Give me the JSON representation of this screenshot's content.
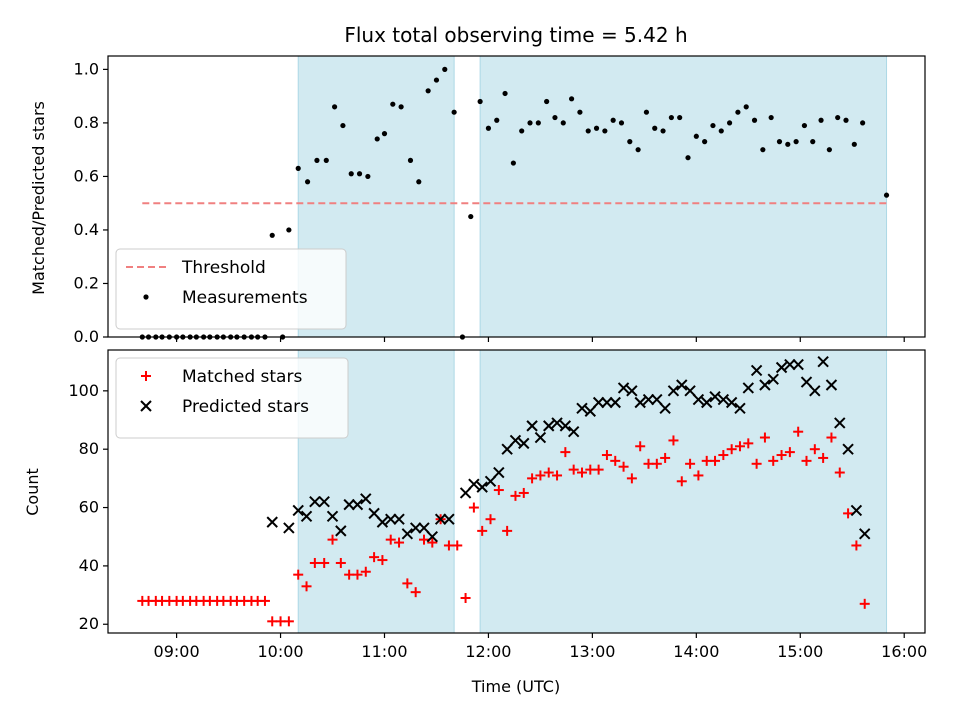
{
  "figure": {
    "title": "Flux total observing time = 5.42 h",
    "xlabel": "Time (UTC)",
    "x_tick_labels": [
      "09:00",
      "10:00",
      "11:00",
      "12:00",
      "13:00",
      "14:00",
      "15:00",
      "16:00"
    ],
    "x_tick_values": [
      9,
      10,
      11,
      12,
      13,
      14,
      15,
      16
    ],
    "xlim": [
      8.34,
      16.2
    ],
    "shaded_spans": [
      [
        10.17,
        11.67
      ],
      [
        11.92,
        15.83
      ]
    ],
    "span_color": "#add8e6"
  },
  "chart_data": [
    {
      "type": "scatter",
      "panel": "top",
      "ylabel": "Matched/Predicted stars",
      "ylim": [
        0,
        1.05
      ],
      "y_ticks": [
        0.0,
        0.2,
        0.4,
        0.6,
        0.8,
        1.0
      ],
      "y_tick_labels": [
        "0.0",
        "0.2",
        "0.4",
        "0.6",
        "0.8",
        "1.0"
      ],
      "legend_position": "lower-left",
      "threshold": {
        "name": "Threshold",
        "y": 0.5,
        "x_range": [
          8.67,
          15.83
        ],
        "color": "#f08080"
      },
      "series": [
        {
          "name": "Measurements",
          "color": "#000000",
          "marker": "dot",
          "points": [
            [
              8.67,
              0
            ],
            [
              8.73,
              0
            ],
            [
              8.8,
              0
            ],
            [
              8.86,
              0
            ],
            [
              8.93,
              0
            ],
            [
              9.0,
              0
            ],
            [
              9.06,
              0
            ],
            [
              9.13,
              0
            ],
            [
              9.19,
              0
            ],
            [
              9.26,
              0
            ],
            [
              9.32,
              0
            ],
            [
              9.39,
              0
            ],
            [
              9.45,
              0
            ],
            [
              9.52,
              0
            ],
            [
              9.58,
              0
            ],
            [
              9.65,
              0
            ],
            [
              9.72,
              0
            ],
            [
              9.78,
              0
            ],
            [
              9.85,
              0
            ],
            [
              9.92,
              0.38
            ],
            [
              10.02,
              0.0
            ],
            [
              10.08,
              0.4
            ],
            [
              10.17,
              0.63
            ],
            [
              10.26,
              0.58
            ],
            [
              10.35,
              0.66
            ],
            [
              10.44,
              0.66
            ],
            [
              10.52,
              0.86
            ],
            [
              10.6,
              0.79
            ],
            [
              10.68,
              0.61
            ],
            [
              10.76,
              0.61
            ],
            [
              10.84,
              0.6
            ],
            [
              10.93,
              0.74
            ],
            [
              11.0,
              0.76
            ],
            [
              11.08,
              0.87
            ],
            [
              11.16,
              0.86
            ],
            [
              11.25,
              0.66
            ],
            [
              11.33,
              0.58
            ],
            [
              11.42,
              0.92
            ],
            [
              11.5,
              0.96
            ],
            [
              11.58,
              1.0
            ],
            [
              11.67,
              0.84
            ],
            [
              11.75,
              0.0
            ],
            [
              11.83,
              0.45
            ],
            [
              11.92,
              0.88
            ],
            [
              12.0,
              0.78
            ],
            [
              12.08,
              0.81
            ],
            [
              12.16,
              0.91
            ],
            [
              12.24,
              0.65
            ],
            [
              12.32,
              0.77
            ],
            [
              12.4,
              0.8
            ],
            [
              12.48,
              0.8
            ],
            [
              12.56,
              0.88
            ],
            [
              12.64,
              0.82
            ],
            [
              12.72,
              0.8
            ],
            [
              12.8,
              0.89
            ],
            [
              12.88,
              0.84
            ],
            [
              12.96,
              0.77
            ],
            [
              13.04,
              0.78
            ],
            [
              13.12,
              0.77
            ],
            [
              13.2,
              0.81
            ],
            [
              13.28,
              0.8
            ],
            [
              13.36,
              0.73
            ],
            [
              13.44,
              0.7
            ],
            [
              13.52,
              0.84
            ],
            [
              13.6,
              0.78
            ],
            [
              13.68,
              0.77
            ],
            [
              13.76,
              0.82
            ],
            [
              13.84,
              0.82
            ],
            [
              13.92,
              0.67
            ],
            [
              14.0,
              0.75
            ],
            [
              14.08,
              0.73
            ],
            [
              14.16,
              0.79
            ],
            [
              14.24,
              0.77
            ],
            [
              14.32,
              0.8
            ],
            [
              14.4,
              0.84
            ],
            [
              14.48,
              0.86
            ],
            [
              14.56,
              0.81
            ],
            [
              14.64,
              0.7
            ],
            [
              14.72,
              0.82
            ],
            [
              14.8,
              0.73
            ],
            [
              14.88,
              0.72
            ],
            [
              14.96,
              0.73
            ],
            [
              15.04,
              0.79
            ],
            [
              15.12,
              0.73
            ],
            [
              15.2,
              0.81
            ],
            [
              15.28,
              0.7
            ],
            [
              15.36,
              0.82
            ],
            [
              15.44,
              0.81
            ],
            [
              15.52,
              0.72
            ],
            [
              15.6,
              0.8
            ],
            [
              15.83,
              0.53
            ]
          ]
        }
      ]
    },
    {
      "type": "scatter",
      "panel": "bottom",
      "ylabel": "Count",
      "ylim": [
        17,
        114
      ],
      "y_ticks": [
        20,
        40,
        60,
        80,
        100
      ],
      "y_tick_labels": [
        "20",
        "40",
        "60",
        "80",
        "100"
      ],
      "legend_position": "upper-left",
      "series": [
        {
          "name": "Matched stars",
          "color": "#ff0000",
          "marker": "plus",
          "points": [
            [
              8.67,
              28
            ],
            [
              8.73,
              28
            ],
            [
              8.8,
              28
            ],
            [
              8.86,
              28
            ],
            [
              8.93,
              28
            ],
            [
              9.0,
              28
            ],
            [
              9.06,
              28
            ],
            [
              9.13,
              28
            ],
            [
              9.19,
              28
            ],
            [
              9.26,
              28
            ],
            [
              9.32,
              28
            ],
            [
              9.39,
              28
            ],
            [
              9.45,
              28
            ],
            [
              9.52,
              28
            ],
            [
              9.58,
              28
            ],
            [
              9.65,
              28
            ],
            [
              9.72,
              28
            ],
            [
              9.78,
              28
            ],
            [
              9.85,
              28
            ],
            [
              9.92,
              21
            ],
            [
              10.0,
              21
            ],
            [
              10.08,
              21
            ],
            [
              10.17,
              37
            ],
            [
              10.25,
              33
            ],
            [
              10.33,
              41
            ],
            [
              10.42,
              41
            ],
            [
              10.5,
              49
            ],
            [
              10.58,
              41
            ],
            [
              10.66,
              37
            ],
            [
              10.74,
              37
            ],
            [
              10.82,
              38
            ],
            [
              10.9,
              43
            ],
            [
              10.98,
              42
            ],
            [
              11.06,
              49
            ],
            [
              11.14,
              48
            ],
            [
              11.22,
              34
            ],
            [
              11.3,
              31
            ],
            [
              11.38,
              49
            ],
            [
              11.46,
              48
            ],
            [
              11.54,
              56
            ],
            [
              11.62,
              47
            ],
            [
              11.7,
              47
            ],
            [
              11.78,
              29
            ],
            [
              11.86,
              60
            ],
            [
              11.94,
              52
            ],
            [
              12.02,
              56
            ],
            [
              12.1,
              66
            ],
            [
              12.18,
              52
            ],
            [
              12.26,
              64
            ],
            [
              12.34,
              65
            ],
            [
              12.42,
              70
            ],
            [
              12.5,
              71
            ],
            [
              12.58,
              72
            ],
            [
              12.66,
              71
            ],
            [
              12.74,
              79
            ],
            [
              12.82,
              73
            ],
            [
              12.9,
              72
            ],
            [
              12.98,
              73
            ],
            [
              13.06,
              73
            ],
            [
              13.14,
              78
            ],
            [
              13.22,
              76
            ],
            [
              13.3,
              74
            ],
            [
              13.38,
              70
            ],
            [
              13.46,
              81
            ],
            [
              13.54,
              75
            ],
            [
              13.62,
              75
            ],
            [
              13.7,
              77
            ],
            [
              13.78,
              83
            ],
            [
              13.86,
              69
            ],
            [
              13.94,
              75
            ],
            [
              14.02,
              71
            ],
            [
              14.1,
              76
            ],
            [
              14.18,
              76
            ],
            [
              14.26,
              78
            ],
            [
              14.34,
              80
            ],
            [
              14.42,
              81
            ],
            [
              14.5,
              82
            ],
            [
              14.58,
              75
            ],
            [
              14.66,
              84
            ],
            [
              14.74,
              76
            ],
            [
              14.82,
              78
            ],
            [
              14.9,
              79
            ],
            [
              14.98,
              86
            ],
            [
              15.06,
              76
            ],
            [
              15.14,
              80
            ],
            [
              15.22,
              77
            ],
            [
              15.3,
              84
            ],
            [
              15.38,
              72
            ],
            [
              15.46,
              58
            ],
            [
              15.54,
              47
            ],
            [
              15.62,
              27
            ]
          ]
        },
        {
          "name": "Predicted stars",
          "color": "#000000",
          "marker": "x",
          "points": [
            [
              9.92,
              55
            ],
            [
              10.08,
              53
            ],
            [
              10.17,
              59
            ],
            [
              10.25,
              57
            ],
            [
              10.33,
              62
            ],
            [
              10.42,
              62
            ],
            [
              10.5,
              57
            ],
            [
              10.58,
              52
            ],
            [
              10.66,
              61
            ],
            [
              10.74,
              61
            ],
            [
              10.82,
              63
            ],
            [
              10.9,
              58
            ],
            [
              10.98,
              55
            ],
            [
              11.06,
              56
            ],
            [
              11.14,
              56
            ],
            [
              11.22,
              51
            ],
            [
              11.3,
              53
            ],
            [
              11.38,
              53
            ],
            [
              11.46,
              50
            ],
            [
              11.54,
              56
            ],
            [
              11.62,
              56
            ],
            [
              11.78,
              65
            ],
            [
              11.86,
              68
            ],
            [
              11.94,
              67
            ],
            [
              12.02,
              69
            ],
            [
              12.1,
              72
            ],
            [
              12.18,
              80
            ],
            [
              12.26,
              83
            ],
            [
              12.34,
              82
            ],
            [
              12.42,
              88
            ],
            [
              12.5,
              84
            ],
            [
              12.58,
              88
            ],
            [
              12.66,
              89
            ],
            [
              12.74,
              88
            ],
            [
              12.82,
              86
            ],
            [
              12.9,
              94
            ],
            [
              12.98,
              93
            ],
            [
              13.06,
              96
            ],
            [
              13.14,
              96
            ],
            [
              13.22,
              96
            ],
            [
              13.3,
              101
            ],
            [
              13.38,
              100
            ],
            [
              13.46,
              96
            ],
            [
              13.54,
              97
            ],
            [
              13.62,
              97
            ],
            [
              13.7,
              94
            ],
            [
              13.78,
              100
            ],
            [
              13.86,
              102
            ],
            [
              13.94,
              100
            ],
            [
              14.02,
              97
            ],
            [
              14.1,
              96
            ],
            [
              14.18,
              98
            ],
            [
              14.26,
              97
            ],
            [
              14.34,
              96
            ],
            [
              14.42,
              94
            ],
            [
              14.5,
              101
            ],
            [
              14.58,
              107
            ],
            [
              14.66,
              102
            ],
            [
              14.74,
              104
            ],
            [
              14.82,
              108
            ],
            [
              14.9,
              109
            ],
            [
              14.98,
              109
            ],
            [
              15.06,
              103
            ],
            [
              15.14,
              100
            ],
            [
              15.22,
              110
            ],
            [
              15.3,
              102
            ],
            [
              15.38,
              89
            ],
            [
              15.46,
              80
            ],
            [
              15.54,
              59
            ],
            [
              15.62,
              51
            ]
          ]
        }
      ]
    }
  ]
}
